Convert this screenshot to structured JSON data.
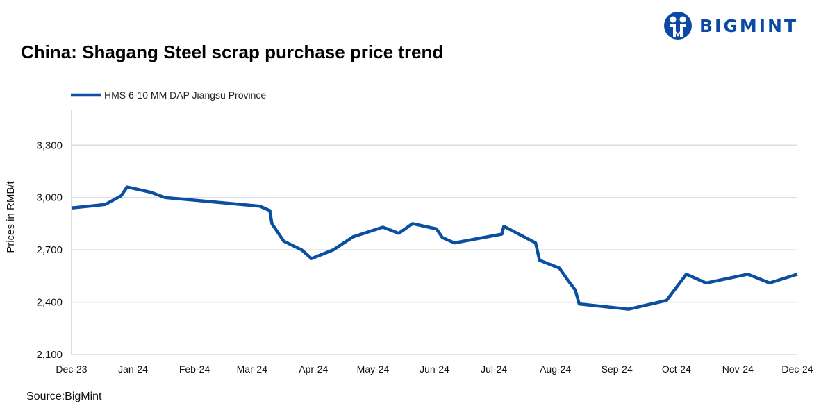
{
  "logo": {
    "text": "BIGMINT"
  },
  "source": "Source:BigMint",
  "chart_data": {
    "type": "line",
    "title": "China: Shagang Steel scrap purchase price trend",
    "xlabel": "",
    "ylabel": "Prices in RMB/t",
    "ylim": [
      2100,
      3500
    ],
    "yticks": [
      2100,
      2400,
      2700,
      3000,
      3300
    ],
    "ytick_labels": [
      "2,100",
      "2,400",
      "2,700",
      "3,000",
      "3,300"
    ],
    "xlim": [
      "2023-12-01",
      "2024-12-01"
    ],
    "xticks": [
      "2023-12-01",
      "2024-01-01",
      "2024-02-01",
      "2024-03-01",
      "2024-04-01",
      "2024-05-01",
      "2024-06-01",
      "2024-07-01",
      "2024-08-01",
      "2024-09-01",
      "2024-10-01",
      "2024-11-01",
      "2024-12-01"
    ],
    "xtick_labels": [
      "Dec-23",
      "Jan-24",
      "Feb-24",
      "Mar-24",
      "Apr-24",
      "May-24",
      "Jun-24",
      "Jul-24",
      "Aug-24",
      "Sep-24",
      "Oct-24",
      "Nov-24",
      "Dec-24"
    ],
    "grid": true,
    "legend_position": "top-left",
    "series": [
      {
        "name": "HMS 6-10 MM DAP Jiangsu Province",
        "color": "#0a4fa0",
        "x": [
          "2023-12-01",
          "2023-12-18",
          "2023-12-26",
          "2023-12-29",
          "2024-01-10",
          "2024-01-17",
          "2024-03-05",
          "2024-03-10",
          "2024-03-11",
          "2024-03-17",
          "2024-03-26",
          "2024-03-31",
          "2024-04-11",
          "2024-04-21",
          "2024-05-06",
          "2024-05-14",
          "2024-05-21",
          "2024-06-02",
          "2024-06-05",
          "2024-06-11",
          "2024-07-05",
          "2024-07-06",
          "2024-07-22",
          "2024-07-24",
          "2024-08-03",
          "2024-08-07",
          "2024-08-11",
          "2024-08-13",
          "2024-09-07",
          "2024-09-26",
          "2024-10-06",
          "2024-10-16",
          "2024-11-06",
          "2024-11-17",
          "2024-12-01"
        ],
        "values": [
          2940,
          2960,
          3010,
          3060,
          3030,
          3000,
          2950,
          2925,
          2850,
          2750,
          2700,
          2650,
          2700,
          2775,
          2830,
          2795,
          2850,
          2820,
          2770,
          2740,
          2790,
          2835,
          2740,
          2640,
          2595,
          2530,
          2470,
          2390,
          2360,
          2410,
          2560,
          2510,
          2560,
          2510,
          2560
        ]
      }
    ]
  }
}
